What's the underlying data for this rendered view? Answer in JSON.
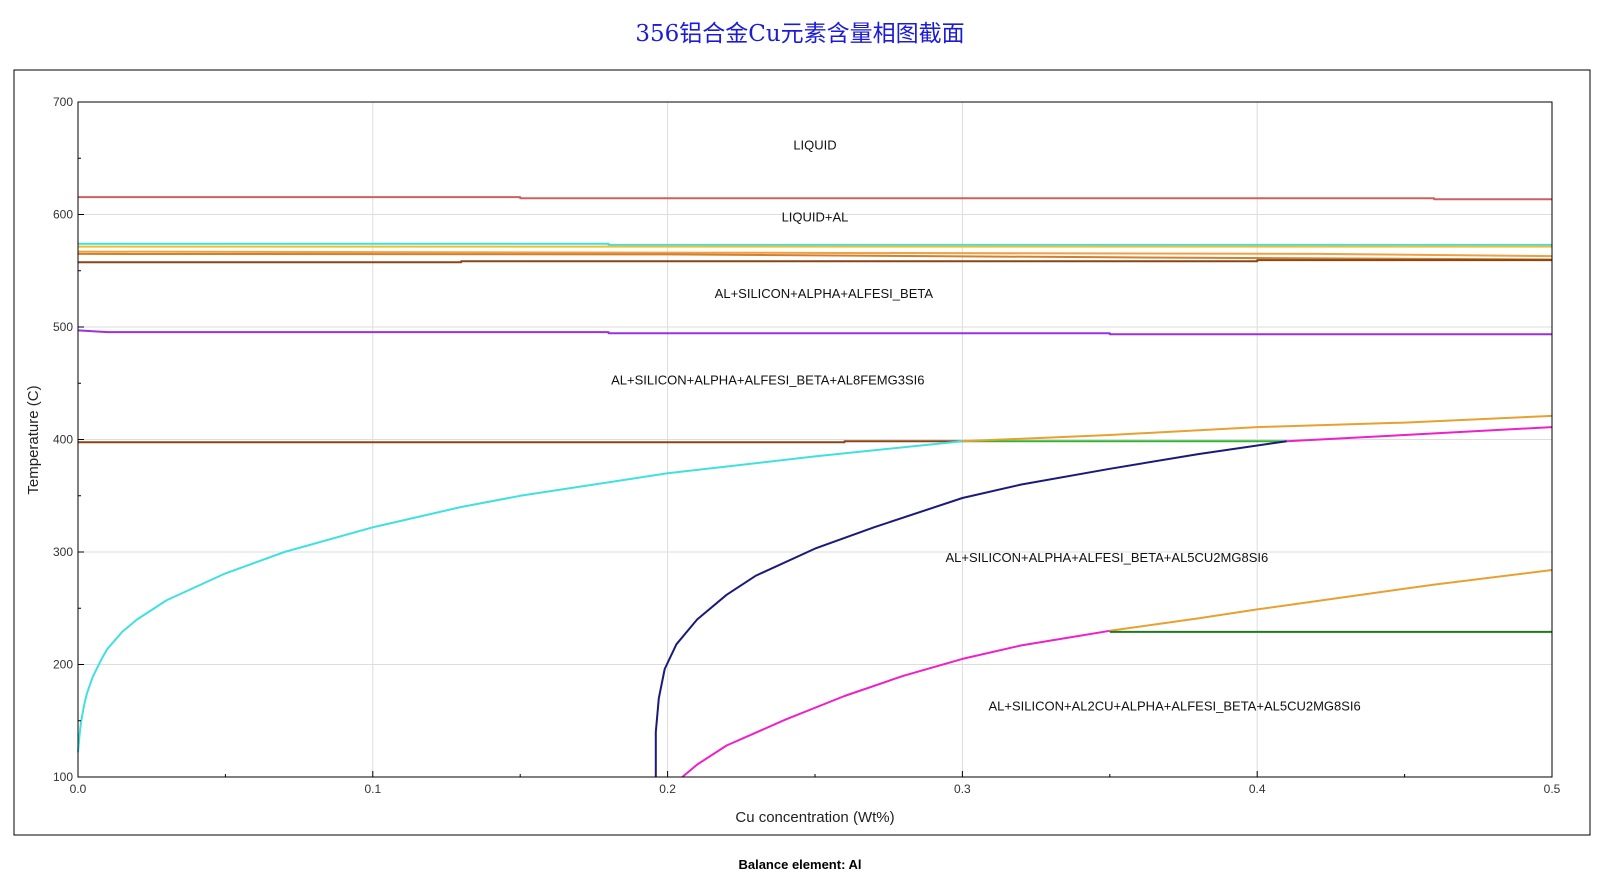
{
  "title": "356铝合金Cu元素含量相图截面",
  "footer": "Balance element: Al",
  "chart_data": {
    "type": "line",
    "xlabel": "Cu concentration (Wt%)",
    "ylabel": "Temperature (C)",
    "xlim": [
      0,
      0.5
    ],
    "ylim": [
      100,
      700
    ],
    "x_ticks": [
      "0.0",
      "0.1",
      "0.2",
      "0.3",
      "0.4",
      "0.5"
    ],
    "y_ticks": [
      "100",
      "200",
      "300",
      "400",
      "500",
      "600",
      "700"
    ],
    "grid": true,
    "region_labels": [
      {
        "text": "LIQUID",
        "x": 0.25,
        "y": 658
      },
      {
        "text": "LIQUID+AL",
        "x": 0.25,
        "y": 594
      },
      {
        "text": "AL+SILICON+ALPHA+ALFESI_BETA",
        "x": 0.253,
        "y": 526
      },
      {
        "text": "AL+SILICON+ALPHA+ALFESI_BETA+AL8FEMG3SI6",
        "x": 0.234,
        "y": 449
      },
      {
        "text": "AL+SILICON+ALPHA+ALFESI_BETA+AL5CU2MG8SI6",
        "x": 0.349,
        "y": 291
      },
      {
        "text": "AL+SILICON+AL2CU+ALPHA+ALFESI_BETA+AL5CU2MG8SI6",
        "x": 0.372,
        "y": 159
      }
    ],
    "series": [
      {
        "color": "#d06060",
        "points": [
          [
            0,
            615.5
          ],
          [
            0.15,
            615.5
          ],
          [
            0.15,
            614.5
          ],
          [
            0.46,
            614.5
          ],
          [
            0.46,
            613.5
          ],
          [
            0.5,
            613.5
          ]
        ]
      },
      {
        "color": "#40e0e0",
        "points": [
          [
            0,
            574
          ],
          [
            0.18,
            574
          ],
          [
            0.18,
            573
          ],
          [
            0.5,
            573
          ]
        ]
      },
      {
        "color": "#f0c030",
        "points": [
          [
            0,
            571.5
          ],
          [
            0.5,
            571.5
          ]
        ]
      },
      {
        "color": "#f0a040",
        "points": [
          [
            0,
            567
          ],
          [
            0.23,
            566
          ],
          [
            0.42,
            565
          ],
          [
            0.5,
            563
          ]
        ]
      },
      {
        "color": "#d08030",
        "points": [
          [
            0,
            565
          ],
          [
            0.2,
            564.5
          ],
          [
            0.35,
            562
          ],
          [
            0.5,
            560
          ]
        ]
      },
      {
        "color": "#8b4513",
        "points": [
          [
            0,
            557.5
          ],
          [
            0.13,
            557.5
          ],
          [
            0.13,
            558.5
          ],
          [
            0.4,
            558.5
          ],
          [
            0.4,
            559.5
          ],
          [
            0.5,
            559.5
          ]
        ]
      },
      {
        "color": "#9b30e0",
        "points": [
          [
            0,
            497
          ],
          [
            0.01,
            495.5
          ],
          [
            0.18,
            495.5
          ],
          [
            0.18,
            494.5
          ],
          [
            0.35,
            494.5
          ],
          [
            0.35,
            493.5
          ],
          [
            0.5,
            493.5
          ]
        ]
      },
      {
        "color": "#8b4513",
        "points": [
          [
            0,
            397.5
          ],
          [
            0.26,
            397.5
          ],
          [
            0.26,
            398.5
          ],
          [
            0.3,
            398.5
          ]
        ]
      },
      {
        "color": "#40e0e0",
        "points": [
          [
            0,
            122
          ],
          [
            0.0005,
            137
          ],
          [
            0.001,
            148
          ],
          [
            0.002,
            163
          ],
          [
            0.003,
            174
          ],
          [
            0.005,
            189
          ],
          [
            0.008,
            205
          ],
          [
            0.01,
            214
          ],
          [
            0.015,
            229
          ],
          [
            0.02,
            240
          ],
          [
            0.03,
            257
          ],
          [
            0.05,
            281
          ],
          [
            0.07,
            300
          ],
          [
            0.1,
            322
          ],
          [
            0.13,
            340
          ],
          [
            0.15,
            350
          ],
          [
            0.2,
            370
          ],
          [
            0.25,
            385
          ],
          [
            0.3,
            398.5
          ]
        ]
      },
      {
        "color": "#32b432",
        "points": [
          [
            0.3,
            398.5
          ],
          [
            0.41,
            398.5
          ]
        ]
      },
      {
        "color": "#e8a030",
        "points": [
          [
            0.3,
            398.5
          ],
          [
            0.35,
            404
          ],
          [
            0.4,
            411
          ],
          [
            0.45,
            415
          ],
          [
            0.5,
            421
          ]
        ]
      },
      {
        "color": "#ee20c8",
        "points": [
          [
            0.41,
            398.5
          ],
          [
            0.45,
            404
          ],
          [
            0.5,
            411
          ]
        ]
      },
      {
        "color": "#1a1a7a",
        "points": [
          [
            0.196,
            100
          ],
          [
            0.196,
            140
          ],
          [
            0.197,
            170
          ],
          [
            0.199,
            196
          ],
          [
            0.203,
            218
          ],
          [
            0.21,
            240
          ],
          [
            0.22,
            262
          ],
          [
            0.23,
            279
          ],
          [
            0.25,
            303
          ],
          [
            0.27,
            322
          ],
          [
            0.3,
            348
          ],
          [
            0.32,
            360
          ],
          [
            0.35,
            374
          ],
          [
            0.38,
            387
          ],
          [
            0.41,
            398.5
          ]
        ]
      },
      {
        "color": "#ee20c8",
        "points": [
          [
            0.205,
            100
          ],
          [
            0.21,
            111
          ],
          [
            0.22,
            128
          ],
          [
            0.24,
            151
          ],
          [
            0.26,
            172
          ],
          [
            0.28,
            190
          ],
          [
            0.3,
            205
          ],
          [
            0.32,
            217
          ],
          [
            0.35,
            230
          ]
        ]
      },
      {
        "color": "#e8a030",
        "points": [
          [
            0.35,
            230
          ],
          [
            0.38,
            241
          ],
          [
            0.4,
            249
          ],
          [
            0.43,
            260
          ],
          [
            0.46,
            271
          ],
          [
            0.5,
            284
          ]
        ]
      },
      {
        "color": "#1e7a1e",
        "points": [
          [
            0.35,
            229
          ],
          [
            0.5,
            229
          ]
        ]
      }
    ]
  }
}
